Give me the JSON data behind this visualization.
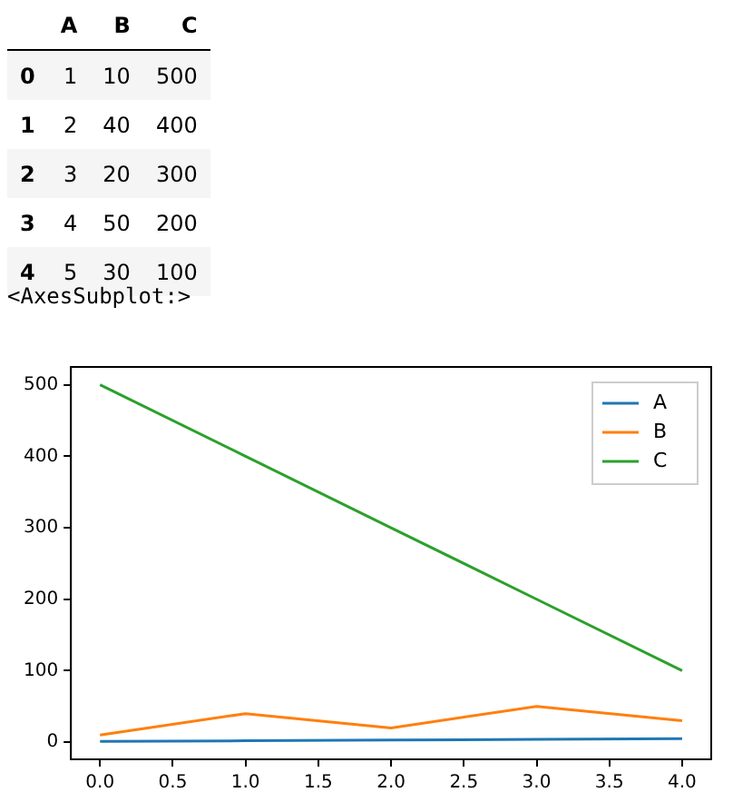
{
  "chart_data": [
    {
      "type": "heatmap",
      "categories": [
        "A",
        "B",
        "C"
      ],
      "y_categories": [
        "0",
        "1",
        "2",
        "3",
        "4"
      ],
      "cells": [
        [
          1,
          10,
          500
        ],
        [
          2,
          40,
          400
        ],
        [
          3,
          20,
          300
        ],
        [
          4,
          50,
          200
        ],
        [
          5,
          30,
          100
        ]
      ],
      "data_labels": true
    },
    {
      "type": "line",
      "x": [
        0,
        1,
        2,
        3,
        4
      ],
      "series": [
        {
          "name": "A",
          "color": "#1f77b4",
          "values": [
            1,
            2,
            3,
            4,
            5
          ]
        },
        {
          "name": "B",
          "color": "#ff7f0e",
          "values": [
            10,
            40,
            20,
            50,
            30
          ]
        },
        {
          "name": "C",
          "color": "#2ca02c",
          "values": [
            500,
            400,
            300,
            200,
            100
          ]
        }
      ],
      "xlim": [
        -0.2,
        4.2
      ],
      "ylim": [
        -23.95,
        524.95
      ],
      "xticks": [
        {
          "value": 0,
          "label": "0.0"
        },
        {
          "value": 0.5,
          "label": "0.5"
        },
        {
          "value": 1,
          "label": "1.0"
        },
        {
          "value": 1.5,
          "label": "1.5"
        },
        {
          "value": 2,
          "label": "2.0"
        },
        {
          "value": 2.5,
          "label": "2.5"
        },
        {
          "value": 3,
          "label": "3.0"
        },
        {
          "value": 3.5,
          "label": "3.5"
        },
        {
          "value": 4,
          "label": "4.0"
        }
      ],
      "yticks": [
        0,
        100,
        200,
        300,
        400,
        500
      ],
      "legend": "top right",
      "marker": "none",
      "line_style": "solid",
      "annotations": [
        "<AxesSubplot:>"
      ]
    }
  ]
}
